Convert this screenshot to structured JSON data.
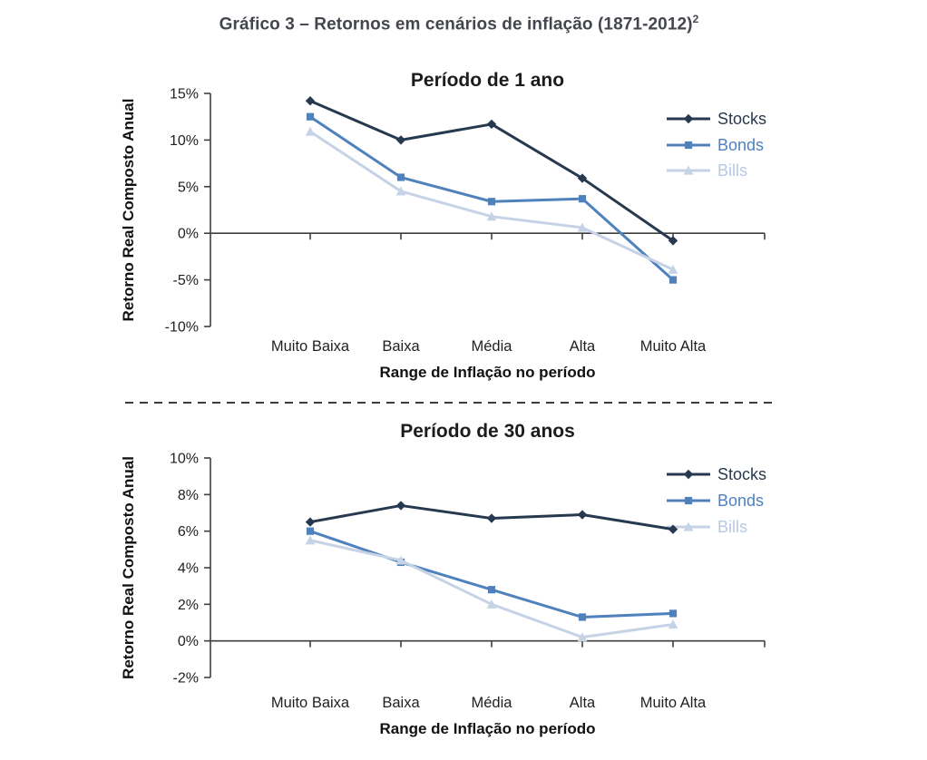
{
  "page": {
    "title": "Gráfico 3 – Retornos em cenários de inflação (1871-2012)",
    "title_superscript": "2"
  },
  "colors": {
    "axis": "#3f3f3f",
    "text": "#1f1f1f",
    "main_title": "#43464d",
    "stocks": "#27394f",
    "bonds": "#4f81bd",
    "bills": "#c6d3e6",
    "bills_label": "#b8c9e0"
  },
  "chart_data": [
    {
      "type": "line",
      "title": "Período de 1 ano",
      "ylabel": "Retorno Real Composto Anual",
      "xlabel": "Range de Inflação no período",
      "categories": [
        "Muito Baixa",
        "Baixa",
        "Média",
        "Alta",
        "Muito Alta"
      ],
      "ylim": [
        -10,
        15
      ],
      "yticks": [
        15,
        10,
        5,
        0,
        -5,
        -10
      ],
      "ytick_labels": [
        "15%",
        "10%",
        "5%",
        "0%",
        "-5%",
        "-10%"
      ],
      "grid": false,
      "zero_axis": true,
      "legend_position": "upper right",
      "series": [
        {
          "name": "Stocks",
          "marker": "diamond",
          "color": "#27394f",
          "label_color": "#27394f",
          "values": [
            14.2,
            10.0,
            11.7,
            5.9,
            -0.8
          ]
        },
        {
          "name": "Bonds",
          "marker": "square",
          "color": "#4f81bd",
          "label_color": "#4f81bd",
          "values": [
            12.5,
            6.0,
            3.4,
            3.7,
            -5.0
          ]
        },
        {
          "name": "Bills",
          "marker": "triangle",
          "color": "#c6d3e6",
          "label_color": "#b8c9e0",
          "values": [
            10.9,
            4.5,
            1.8,
            0.6,
            -3.9
          ]
        }
      ]
    },
    {
      "type": "line",
      "title": "Período de 30 anos",
      "ylabel": "Retorno Real Composto Anual",
      "xlabel": "Range de Inflação no período",
      "categories": [
        "Muito Baixa",
        "Baixa",
        "Média",
        "Alta",
        "Muito Alta"
      ],
      "ylim": [
        -2,
        10
      ],
      "yticks": [
        10,
        8,
        6,
        4,
        2,
        0,
        -2
      ],
      "ytick_labels": [
        "10%",
        "8%",
        "6%",
        "4%",
        "2%",
        "0%",
        "-2%"
      ],
      "grid": false,
      "zero_axis": true,
      "legend_position": "upper right",
      "series": [
        {
          "name": "Stocks",
          "marker": "diamond",
          "color": "#27394f",
          "label_color": "#27394f",
          "values": [
            6.5,
            7.4,
            6.7,
            6.9,
            6.1
          ]
        },
        {
          "name": "Bonds",
          "marker": "square",
          "color": "#4f81bd",
          "label_color": "#4f81bd",
          "values": [
            6.0,
            4.3,
            2.8,
            1.3,
            1.5
          ]
        },
        {
          "name": "Bills",
          "marker": "triangle",
          "color": "#c6d3e6",
          "label_color": "#b8c9e0",
          "values": [
            5.5,
            4.4,
            2.0,
            0.2,
            0.9
          ]
        }
      ]
    }
  ]
}
